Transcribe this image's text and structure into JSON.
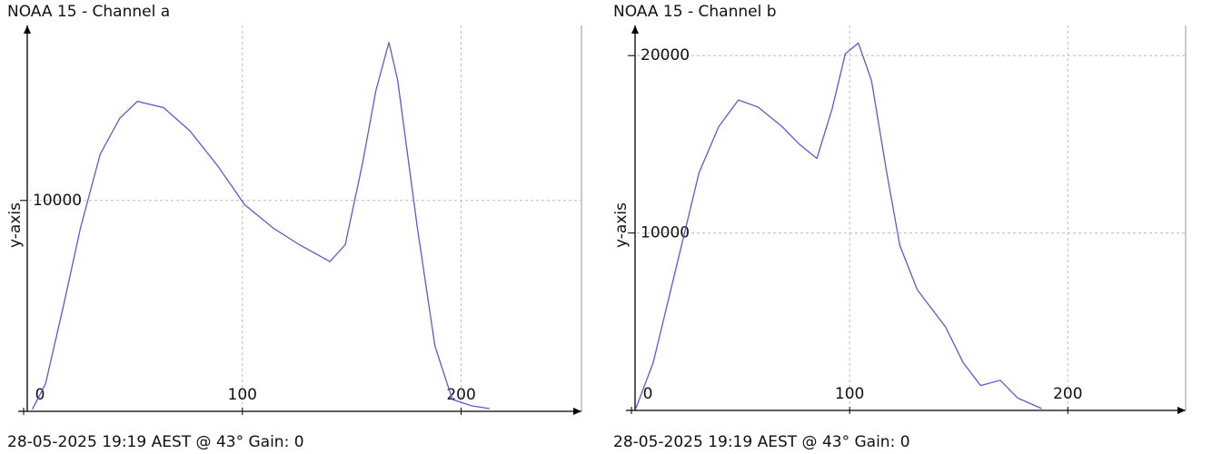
{
  "chart_data": [
    {
      "type": "line",
      "title": "NOAA 15 - Channel a",
      "y_label": "y-axis",
      "footer": "28-05-2025 19:19 AEST @ 43° Gain: 0",
      "xlim": [
        0,
        255
      ],
      "ylim": [
        0,
        18300
      ],
      "xticks": [
        0,
        100,
        200
      ],
      "yticks": [
        10000
      ],
      "grid": true,
      "series": [
        {
          "color": "#5a5ad2",
          "x": [
            4,
            10,
            18,
            26,
            35,
            44,
            52,
            64,
            76,
            89,
            101,
            114,
            126,
            140,
            147,
            155,
            161,
            167,
            171,
            180,
            188,
            196,
            205,
            213
          ],
          "values": [
            100,
            1300,
            4900,
            8700,
            12200,
            13900,
            14700,
            14400,
            13300,
            11600,
            9800,
            8700,
            7900,
            7100,
            7900,
            11800,
            15200,
            17500,
            15700,
            8700,
            3100,
            560,
            260,
            130
          ]
        }
      ]
    },
    {
      "type": "line",
      "title": "NOAA 15 - Channel b",
      "y_label": "y-axis",
      "footer": "28-05-2025 19:19 AEST @ 43° Gain: 0",
      "xlim": [
        0,
        254
      ],
      "ylim": [
        0,
        21700
      ],
      "xticks": [
        0,
        100,
        200
      ],
      "yticks": [
        10000,
        20000
      ],
      "grid": true,
      "series": [
        {
          "color": "#5a5ad2",
          "x": [
            2,
            10,
            21,
            31,
            40,
            49,
            58,
            69,
            77,
            85,
            92,
            98,
            104,
            110,
            117,
            123,
            131,
            144,
            152,
            160,
            169,
            177,
            188
          ],
          "values": [
            100,
            2700,
            8300,
            13400,
            16000,
            17500,
            17100,
            16000,
            15000,
            14200,
            17000,
            20100,
            20700,
            18600,
            13400,
            9300,
            6800,
            4700,
            2700,
            1400,
            1700,
            700,
            100
          ]
        }
      ]
    }
  ]
}
